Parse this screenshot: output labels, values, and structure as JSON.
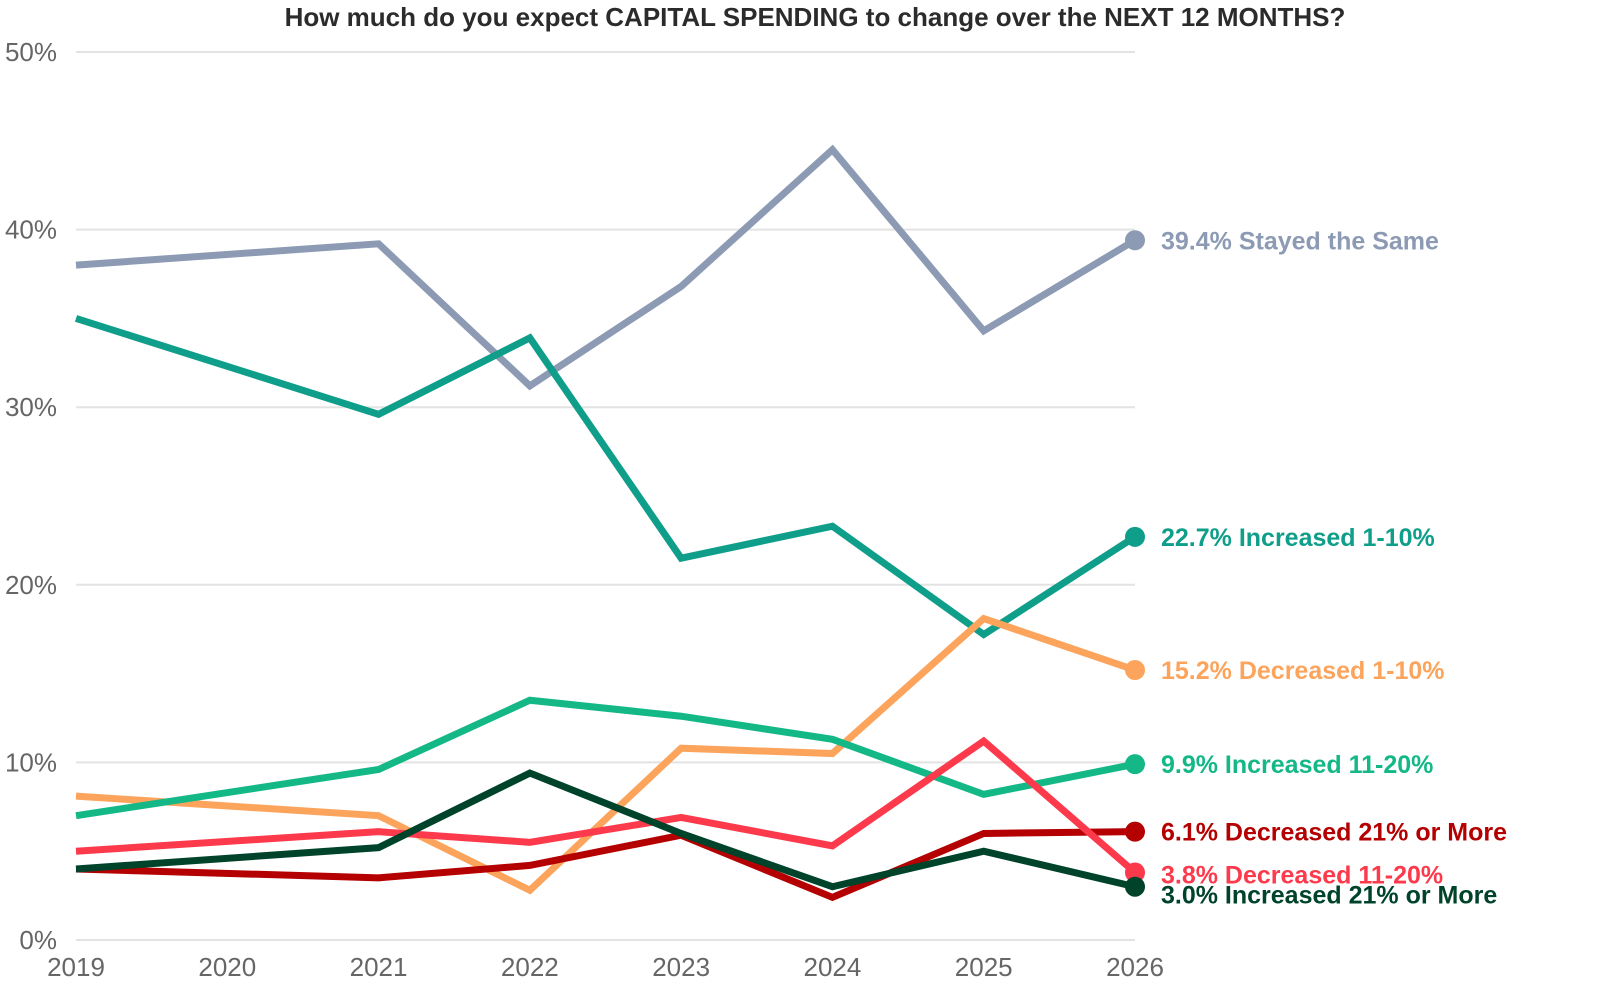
{
  "chart_data": {
    "type": "line",
    "title": "How much do you expect CAPITAL SPENDING to change over the NEXT 12 MONTHS?",
    "xlabel": "",
    "ylabel": "",
    "x": [
      2019,
      2020,
      2021,
      2022,
      2023,
      2024,
      2025,
      2026
    ],
    "x_tick_labels": [
      "2019",
      "2020",
      "2021",
      "2022",
      "2023",
      "2024",
      "2025",
      "2026"
    ],
    "ylim": [
      0,
      50
    ],
    "y_ticks": [
      0,
      10,
      20,
      30,
      40,
      50
    ],
    "y_tick_labels": [
      "0%",
      "10%",
      "20%",
      "30%",
      "40%",
      "50%"
    ],
    "grid": "horizontal",
    "legend": "end-of-line labels (right)",
    "series": [
      {
        "name": "Stayed the Same",
        "color": "#8c9ab3",
        "label_color": "#8c9ab3",
        "end_label": "39.4% Stayed the Same",
        "points": [
          [
            2019,
            38.0
          ],
          [
            2021,
            39.2
          ],
          [
            2022,
            31.2
          ],
          [
            2023,
            36.8
          ],
          [
            2024,
            44.5
          ],
          [
            2025,
            34.3
          ],
          [
            2026,
            39.4
          ]
        ]
      },
      {
        "name": "Increased 1-10%",
        "color": "#0f9e8a",
        "label_color": "#0f9e8a",
        "end_label": "22.7% Increased 1-10%",
        "points": [
          [
            2019,
            35.0
          ],
          [
            2021,
            29.6
          ],
          [
            2022,
            33.9
          ],
          [
            2023,
            21.5
          ],
          [
            2024,
            23.3
          ],
          [
            2025,
            17.2
          ],
          [
            2026,
            22.7
          ]
        ]
      },
      {
        "name": "Decreased 1-10%",
        "color": "#fca45c",
        "label_color": "#fca45c",
        "end_label": "15.2% Decreased 1-10%",
        "points": [
          [
            2019,
            8.1
          ],
          [
            2021,
            7.0
          ],
          [
            2022,
            2.8
          ],
          [
            2023,
            10.8
          ],
          [
            2024,
            10.5
          ],
          [
            2025,
            18.1
          ],
          [
            2026,
            15.2
          ]
        ]
      },
      {
        "name": "Increased 11-20%",
        "color": "#14b886",
        "label_color": "#14b886",
        "end_label": "9.9% Increased 11-20%",
        "points": [
          [
            2019,
            7.0
          ],
          [
            2021,
            9.6
          ],
          [
            2022,
            13.5
          ],
          [
            2023,
            12.6
          ],
          [
            2024,
            11.3
          ],
          [
            2025,
            8.2
          ],
          [
            2026,
            9.9
          ]
        ]
      },
      {
        "name": "Decreased 21% or More",
        "color": "#b40000",
        "label_color": "#b40000",
        "end_label": "6.1% Decreased 21% or More",
        "points": [
          [
            2019,
            4.0
          ],
          [
            2021,
            3.5
          ],
          [
            2022,
            4.2
          ],
          [
            2023,
            5.9
          ],
          [
            2024,
            2.4
          ],
          [
            2025,
            6.0
          ],
          [
            2026,
            6.1
          ]
        ]
      },
      {
        "name": "Decreased 11-20%",
        "color": "#fc3a4c",
        "label_color": "#fc3a4c",
        "end_label": "3.8% Decreased 11-20%",
        "points": [
          [
            2019,
            5.0
          ],
          [
            2021,
            6.1
          ],
          [
            2022,
            5.5
          ],
          [
            2023,
            6.9
          ],
          [
            2024,
            5.3
          ],
          [
            2025,
            11.2
          ],
          [
            2026,
            3.8
          ]
        ]
      },
      {
        "name": "Increased 21% or More",
        "color": "#00432b",
        "label_color": "#00432b",
        "end_label": "3.0% Increased 21% or More",
        "points": [
          [
            2019,
            4.0
          ],
          [
            2021,
            5.2
          ],
          [
            2022,
            9.4
          ],
          [
            2023,
            6.0
          ],
          [
            2024,
            3.0
          ],
          [
            2025,
            5.0
          ],
          [
            2026,
            3.0
          ]
        ]
      }
    ]
  }
}
